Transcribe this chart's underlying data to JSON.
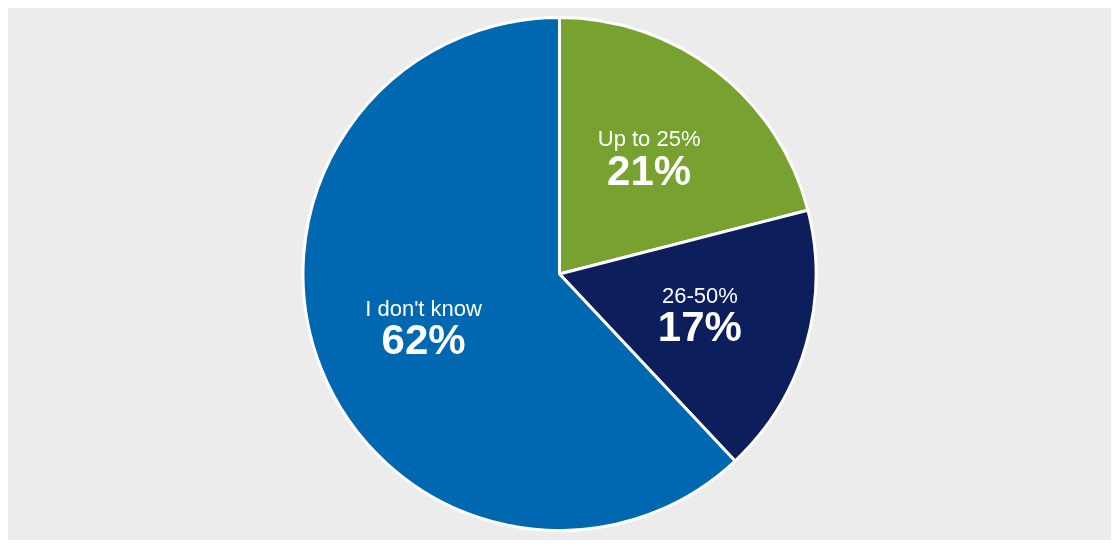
{
  "chart_data": {
    "type": "pie",
    "categories": [
      "Up to 25%",
      "26-50%",
      "I don't know"
    ],
    "values": [
      21,
      17,
      62
    ],
    "colors": [
      "#78a22f",
      "#0c1e5b",
      "#0067b1"
    ],
    "value_labels": [
      "21%",
      "17%",
      "62%"
    ],
    "legend": false
  }
}
